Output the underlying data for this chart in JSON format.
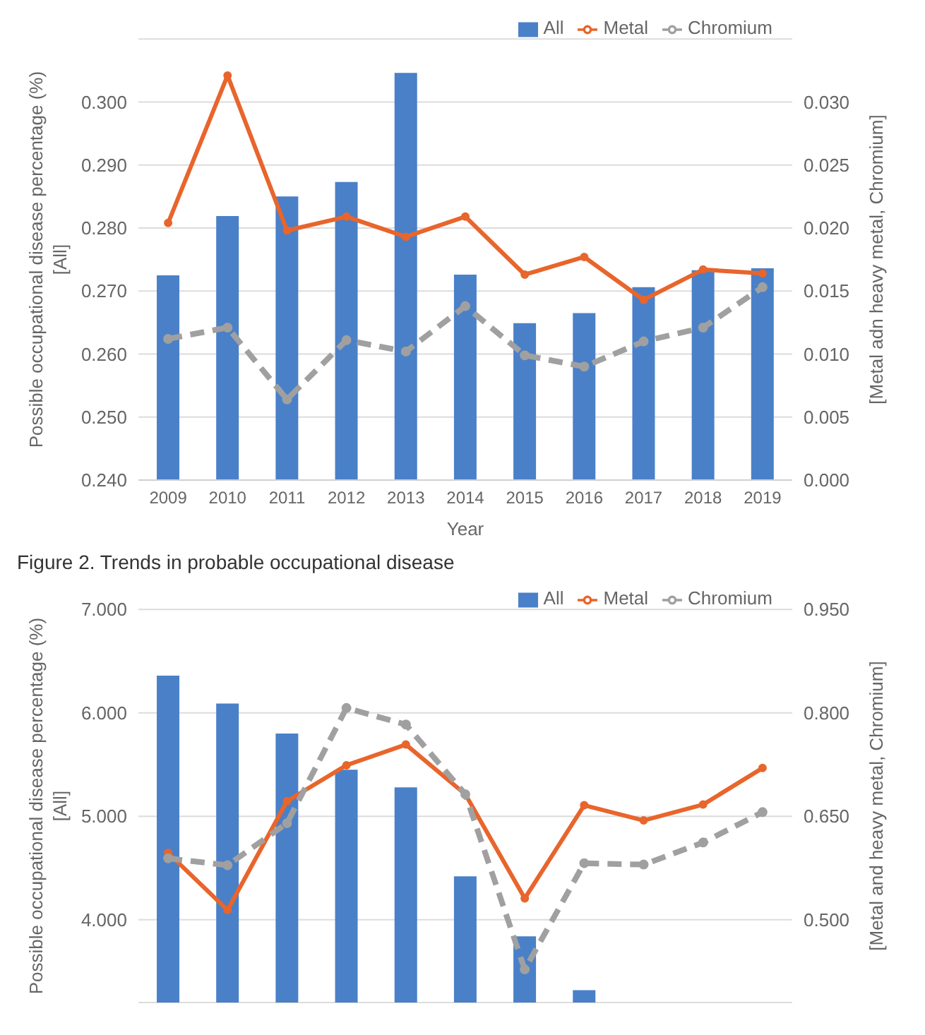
{
  "chart_data": [
    {
      "type": "bar",
      "xlabel": "Year",
      "ylabel": "Possible occupational disease percentage (%)\n[All]",
      "y2label": "[Metal adn heavy metal, Chromium]",
      "categories": [
        "2009",
        "2010",
        "2011",
        "2012",
        "2013",
        "2014",
        "2015",
        "2016",
        "2017",
        "2018",
        "2019"
      ],
      "series": [
        {
          "name": "All",
          "color": "#4a80c8",
          "values": [
            0.2725,
            0.2819,
            0.285,
            0.2873,
            0.3046,
            0.2726,
            0.2649,
            0.2665,
            0.2706,
            0.2733,
            0.2736
          ]
        },
        {
          "name": "Metal",
          "type": "line",
          "axis": "y2",
          "color": "#e8652c",
          "line_style": "solid",
          "values": [
            0.0204,
            0.0321,
            0.0198,
            0.0209,
            0.0193,
            0.0209,
            0.0163,
            0.0177,
            0.0143,
            0.0167,
            0.0164
          ]
        },
        {
          "name": "Chromium",
          "type": "line",
          "axis": "y2",
          "color": "#a0a0a0",
          "line_style": "dashed",
          "values": [
            0.0112,
            0.0121,
            0.0064,
            0.0111,
            0.0102,
            0.0138,
            0.0099,
            0.009,
            0.011,
            0.0121,
            0.0153
          ]
        }
      ],
      "ylim": [
        0.24,
        0.31
      ],
      "yticks": [
        {
          "value": 0.24,
          "label": "0.240"
        },
        {
          "value": 0.25,
          "label": "0.250"
        },
        {
          "value": 0.26,
          "label": "0.260"
        },
        {
          "value": 0.27,
          "label": "0.270"
        },
        {
          "value": 0.28,
          "label": "0.280"
        },
        {
          "value": 0.29,
          "label": "0.290"
        },
        {
          "value": 0.3,
          "label": "0.300"
        }
      ],
      "y2lim": [
        0,
        0.035
      ],
      "y2ticks": [
        {
          "value": 0,
          "label": "0.000"
        },
        {
          "value": 0.005,
          "label": "0.005"
        },
        {
          "value": 0.01,
          "label": "0.010"
        },
        {
          "value": 0.015,
          "label": "0.015"
        },
        {
          "value": 0.02,
          "label": "0.020"
        },
        {
          "value": 0.025,
          "label": "0.025"
        },
        {
          "value": 0.03,
          "label": "0.030"
        }
      ],
      "grid": "y",
      "legend": "top right",
      "marker": "circle",
      "annotations": [
        "Figure 2. Trends in probable occupational disease"
      ]
    },
    {
      "type": "bar",
      "ylabel": "Possible occupational disease percentage (%)\n[All]",
      "y2label": "[Metal and heavy metal, Chromium]",
      "categories": [
        null,
        null,
        null,
        null,
        null,
        null,
        null,
        null,
        null,
        null,
        null
      ],
      "series": [
        {
          "name": "All",
          "color": "#4a80c8",
          "values": [
            6.36,
            6.09,
            5.8,
            5.45,
            5.28,
            4.42,
            3.84,
            3.32,
            null,
            null,
            null
          ]
        },
        {
          "name": "Metal",
          "type": "line",
          "axis": "y2",
          "color": "#e8652c",
          "line_style": "solid",
          "values": [
            0.597,
            0.514,
            0.672,
            0.724,
            0.754,
            0.682,
            0.531,
            0.666,
            0.644,
            0.667,
            0.72
          ]
        },
        {
          "name": "Chromium",
          "type": "line",
          "axis": "y2",
          "color": "#a0a0a0",
          "line_style": "dashed",
          "values": [
            0.589,
            0.579,
            0.64,
            0.807,
            0.783,
            0.682,
            0.428,
            0.582,
            0.58,
            0.612,
            0.656
          ]
        }
      ],
      "ylim": [
        3.2,
        7
      ],
      "yticks": [
        {
          "value": 4,
          "label": "4.000"
        },
        {
          "value": 5,
          "label": "5.000"
        },
        {
          "value": 6,
          "label": "6.000"
        },
        {
          "value": 7,
          "label": "7.000"
        }
      ],
      "y2lim": [
        0.38,
        0.95
      ],
      "y2ticks": [
        {
          "value": 0.5,
          "label": "0.500"
        },
        {
          "value": 0.65,
          "label": "0.650"
        },
        {
          "value": 0.8,
          "label": "0.800"
        },
        {
          "value": 0.95,
          "label": "0.950"
        }
      ],
      "grid": "y",
      "legend": "top right",
      "marker": "circle",
      "tick_labels": "y"
    }
  ]
}
